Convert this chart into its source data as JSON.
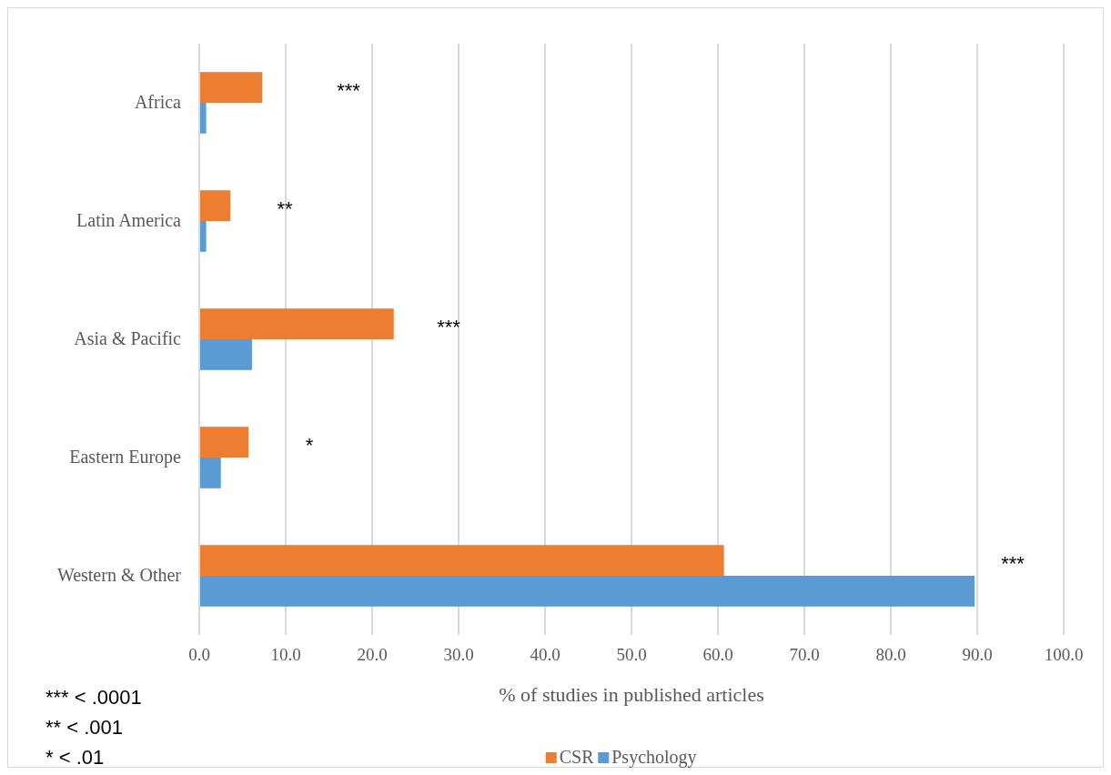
{
  "chart_data": {
    "type": "bar",
    "orientation": "horizontal",
    "xlabel": "% of studies in published articles",
    "categories": [
      "Africa",
      "Latin America",
      "Asia & Pacific",
      "Eastern Europe",
      "Western & Other"
    ],
    "series": [
      {
        "name": "CSR",
        "color": "#ed7d31",
        "values": [
          7.3,
          3.6,
          22.5,
          5.7,
          60.7
        ]
      },
      {
        "name": "Psychology",
        "color": "#5b9bd5",
        "values": [
          0.8,
          0.8,
          6.1,
          2.5,
          89.7
        ]
      }
    ],
    "xlim": [
      0,
      100
    ],
    "xticks": [
      {
        "value": 0,
        "label": "0.0"
      },
      {
        "value": 10,
        "label": "10.0"
      },
      {
        "value": 20,
        "label": "20.0"
      },
      {
        "value": 30,
        "label": "30.0"
      },
      {
        "value": 40,
        "label": "40.0"
      },
      {
        "value": 50,
        "label": "50.0"
      },
      {
        "value": 60,
        "label": "60.0"
      },
      {
        "value": 70,
        "label": "70.0"
      },
      {
        "value": 80,
        "label": "80.0"
      },
      {
        "value": 90,
        "label": "90.0"
      },
      {
        "value": 100,
        "label": "100.0"
      }
    ],
    "grid": "x",
    "legend": "bottom",
    "annotations": [
      "***",
      "**",
      "***",
      "*",
      "***",
      "*** < .0001",
      "** < .001",
      "* < .01"
    ]
  }
}
